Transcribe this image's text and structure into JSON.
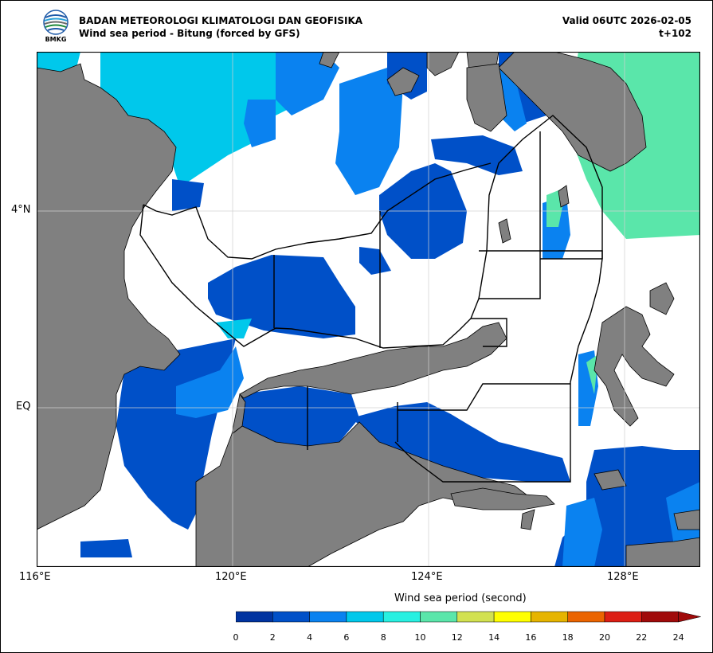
{
  "header": {
    "agency": "BADAN METEOROLOGI KLIMATOLOGI DAN GEOFISIKA",
    "subtitle": "Wind sea period - Bitung (forced by GFS)",
    "valid": "Valid 06UTC 2026-02-05",
    "lead_time": "t+102",
    "logo_text": "BMKG"
  },
  "axes": {
    "lat_labels": [
      "4°N",
      "EQ"
    ],
    "lon_labels": [
      "116°E",
      "120°E",
      "124°E",
      "128°E"
    ]
  },
  "colorbar": {
    "title": "Wind sea period (second)",
    "ticks": [
      "0",
      "2",
      "4",
      "6",
      "8",
      "10",
      "12",
      "14",
      "16",
      "18",
      "20",
      "22",
      "24"
    ],
    "colors": [
      "#0033a0",
      "#0050c8",
      "#0a82f0",
      "#00c8eb",
      "#28f0e1",
      "#5ae6aa",
      "#d2e150",
      "#ffff00",
      "#e6b400",
      "#eb6400",
      "#dc1e14",
      "#a00a0a"
    ]
  },
  "legend_colors": {
    "land": "#808080",
    "sea_white": "#ffffff",
    "coast": "#000000"
  }
}
